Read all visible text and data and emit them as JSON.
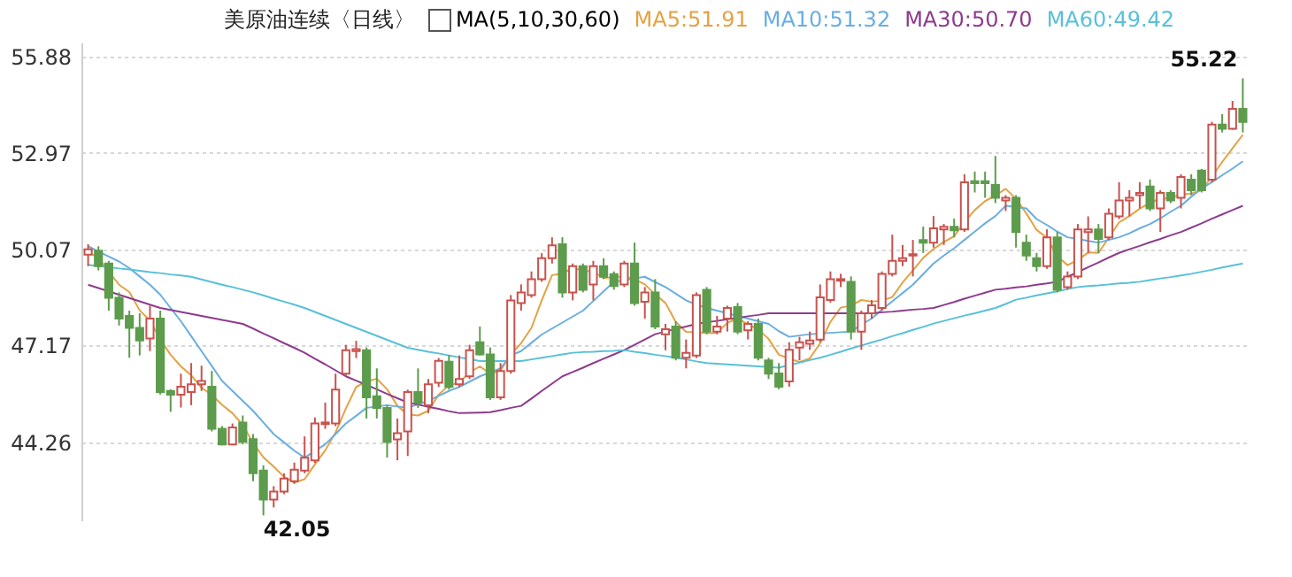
{
  "chart_data": {
    "type": "candlestick",
    "title": "美原油连续〈日线〉",
    "legend_title": "MA(5,10,30,60)",
    "legend": "top",
    "grid": "y",
    "tick_labels": "y",
    "ylim": [
      41.9,
      56.3
    ],
    "yticks": [
      44.26,
      47.17,
      50.07,
      52.97,
      55.88
    ],
    "colors": [
      "#c8524e",
      "#5c9c4c",
      "#5c9c4c",
      "#5c9c4c",
      "#5c9c4c",
      "#5c9c4c",
      "#c8524e",
      "#5c9c4c",
      "#5c9c4c",
      "#c8524e",
      "#c8524e",
      "#c8524e",
      "#5c9c4c",
      "#5c9c4c",
      "#c8524e",
      "#5c9c4c",
      "#5c9c4c",
      "#5c9c4c",
      "#c8524e",
      "#c8524e",
      "#c8524e",
      "#c8524e",
      "#c8524e",
      "#c8524e",
      "#c8524e",
      "#c8524e",
      "#c8524e",
      "#5c9c4c",
      "#5c9c4c",
      "#5c9c4c",
      "#c8524e",
      "#c8524e",
      "#5c9c4c",
      "#c8524e",
      "#c8524e",
      "#5c9c4c",
      "#c8524e",
      "#c8524e",
      "#5c9c4c",
      "#5c9c4c",
      "#c8524e",
      "#c8524e",
      "#c8524e",
      "#c8524e",
      "#c8524e",
      "#c8524e",
      "#5c9c4c",
      "#c8524e",
      "#5c9c4c",
      "#c8524e",
      "#5c9c4c",
      "#5c9c4c",
      "#c8524e",
      "#5c9c4c",
      "#c8524e",
      "#5c9c4c",
      "#c8524e",
      "#5c9c4c",
      "#c8524e",
      "#c8524e",
      "#5c9c4c",
      "#c8524e",
      "#c8524e",
      "#5c9c4c",
      "#c8524e",
      "#5c9c4c",
      "#5c9c4c",
      "#5c9c4c",
      "#c8524e",
      "#c8524e",
      "#c8524e",
      "#c8524e",
      "#c8524e",
      "#c8524e",
      "#5c9c4c",
      "#c8524e",
      "#c8524e",
      "#c8524e",
      "#c8524e",
      "#c8524e",
      "#c8524e",
      "#5c9c4c",
      "#c8524e",
      "#c8524e",
      "#5c9c4c",
      "#c8524e",
      "#5c9c4c",
      "#5c9c4c",
      "#5c9c4c",
      "#c8524e",
      "#5c9c4c",
      "#5c9c4c",
      "#5c9c4c",
      "#c8524e",
      "#5c9c4c",
      "#c8524e",
      "#c8524e",
      "#c8524e",
      "#5c9c4c",
      "#c8524e",
      "#c8524e",
      "#c8524e",
      "#c8524e",
      "#5c9c4c",
      "#c8524e",
      "#5c9c4c",
      "#c8524e",
      "#5c9c4c",
      "#5c9c4c",
      "#c8524e",
      "#5c9c4c",
      "#c8524e",
      "#5c9c4c"
    ],
    "categories": [
      null,
      null,
      null,
      null,
      null,
      null,
      null,
      null,
      null,
      null,
      null,
      null,
      null,
      null,
      null,
      null,
      null,
      null,
      null,
      null,
      null,
      null,
      null,
      null,
      null,
      null,
      null,
      null,
      null,
      null,
      null,
      null,
      null,
      null,
      null,
      null,
      null,
      null,
      null,
      null,
      null,
      null,
      null,
      null,
      null,
      null,
      null,
      null,
      null,
      null,
      null,
      null,
      null,
      null,
      null,
      null,
      null,
      null,
      null,
      null,
      null,
      null,
      null,
      null,
      null,
      null,
      null,
      null,
      null,
      null,
      null,
      null,
      null,
      null,
      null,
      null,
      null,
      null,
      null,
      null,
      null,
      null,
      null,
      null,
      null,
      null,
      null,
      null,
      null,
      null,
      null,
      null,
      null,
      null,
      null,
      null,
      null,
      null,
      null,
      null,
      null,
      null,
      null,
      null,
      null,
      null,
      null,
      null,
      null,
      null,
      null,
      null,
      null
    ],
    "ohlc": [
      [
        49.91,
        50.22,
        49.56,
        50.07
      ],
      [
        50.03,
        50.16,
        49.43,
        49.56
      ],
      [
        49.64,
        49.72,
        48.22,
        48.61
      ],
      [
        48.61,
        48.77,
        47.77,
        47.98
      ],
      [
        48.06,
        48.22,
        46.8,
        47.7
      ],
      [
        47.7,
        48.14,
        46.87,
        47.32
      ],
      [
        47.38,
        48.37,
        47.0,
        47.98
      ],
      [
        47.98,
        48.22,
        45.69,
        45.77
      ],
      [
        45.8,
        45.85,
        45.17,
        45.69
      ],
      [
        45.69,
        46.32,
        45.3,
        45.93
      ],
      [
        45.77,
        46.64,
        45.37,
        46.0
      ],
      [
        46.0,
        46.56,
        45.8,
        46.1
      ],
      [
        45.93,
        46.4,
        44.58,
        44.66
      ],
      [
        44.66,
        44.74,
        44.16,
        44.19
      ],
      [
        44.19,
        44.82,
        44.16,
        44.7
      ],
      [
        44.85,
        45.06,
        44.19,
        44.27
      ],
      [
        44.35,
        44.5,
        43.08,
        43.32
      ],
      [
        43.4,
        43.56,
        42.05,
        42.53
      ],
      [
        42.53,
        42.93,
        42.29,
        42.77
      ],
      [
        42.77,
        43.32,
        42.69,
        43.16
      ],
      [
        43.08,
        43.64,
        43.0,
        43.43
      ],
      [
        43.4,
        44.43,
        43.32,
        43.79
      ],
      [
        43.71,
        45.0,
        43.63,
        44.82
      ],
      [
        44.8,
        45.45,
        44.66,
        44.85
      ],
      [
        44.82,
        46.32,
        44.74,
        45.84
      ],
      [
        46.32,
        47.19,
        46.24,
        47.03
      ],
      [
        47.0,
        47.31,
        46.79,
        47.06
      ],
      [
        47.03,
        47.11,
        44.97,
        45.61
      ],
      [
        45.64,
        46.48,
        44.97,
        45.29
      ],
      [
        45.29,
        45.37,
        43.79,
        44.26
      ],
      [
        44.34,
        44.97,
        43.71,
        44.53
      ],
      [
        44.58,
        45.84,
        43.84,
        45.77
      ],
      [
        45.77,
        46.48,
        45.29,
        45.45
      ],
      [
        45.37,
        46.16,
        45.13,
        46.0
      ],
      [
        46.05,
        46.79,
        45.92,
        46.71
      ],
      [
        46.68,
        46.87,
        45.84,
        45.92
      ],
      [
        46.0,
        46.87,
        45.92,
        46.16
      ],
      [
        46.24,
        47.19,
        46.16,
        47.03
      ],
      [
        47.27,
        47.74,
        46.87,
        46.9
      ],
      [
        46.9,
        47.11,
        45.53,
        45.61
      ],
      [
        45.61,
        46.64,
        45.53,
        46.4
      ],
      [
        46.4,
        48.69,
        46.32,
        48.53
      ],
      [
        48.45,
        49.01,
        48.22,
        48.77
      ],
      [
        48.69,
        49.4,
        48.61,
        49.17
      ],
      [
        49.17,
        49.95,
        49.09,
        49.8
      ],
      [
        49.8,
        50.43,
        49.64,
        50.19
      ],
      [
        50.22,
        50.43,
        48.61,
        48.77
      ],
      [
        48.77,
        49.64,
        48.53,
        49.56
      ],
      [
        49.56,
        49.64,
        48.77,
        48.85
      ],
      [
        49.01,
        49.72,
        48.53,
        49.56
      ],
      [
        49.56,
        49.8,
        49.17,
        49.24
      ],
      [
        49.32,
        49.4,
        48.85,
        48.96
      ],
      [
        49.01,
        49.72,
        48.93,
        49.64
      ],
      [
        49.64,
        50.27,
        48.37,
        48.45
      ],
      [
        48.49,
        48.93,
        47.98,
        48.77
      ],
      [
        48.77,
        49.17,
        47.66,
        47.74
      ],
      [
        47.51,
        47.82,
        47.03,
        47.66
      ],
      [
        47.74,
        47.9,
        46.72,
        46.8
      ],
      [
        46.8,
        47.35,
        46.48,
        46.95
      ],
      [
        46.87,
        48.77,
        46.79,
        48.69
      ],
      [
        48.85,
        48.93,
        47.51,
        47.59
      ],
      [
        47.59,
        48.06,
        47.51,
        47.74
      ],
      [
        47.98,
        48.37,
        47.59,
        48.3
      ],
      [
        48.33,
        48.45,
        47.51,
        47.59
      ],
      [
        47.63,
        47.9,
        47.35,
        47.82
      ],
      [
        47.82,
        47.98,
        46.72,
        46.8
      ],
      [
        46.72,
        46.8,
        46.16,
        46.32
      ],
      [
        46.33,
        46.64,
        45.85,
        45.93
      ],
      [
        46.09,
        47.27,
        45.93,
        47.04
      ],
      [
        47.11,
        47.43,
        46.72,
        47.27
      ],
      [
        47.22,
        47.59,
        47.04,
        47.32
      ],
      [
        47.35,
        49.01,
        47.27,
        48.62
      ],
      [
        48.54,
        49.4,
        48.46,
        49.17
      ],
      [
        49.12,
        49.33,
        48.93,
        49.17
      ],
      [
        49.09,
        49.25,
        47.35,
        47.59
      ],
      [
        47.59,
        48.22,
        47.04,
        48.14
      ],
      [
        48.14,
        48.54,
        47.98,
        48.38
      ],
      [
        48.3,
        49.4,
        48.22,
        49.33
      ],
      [
        49.33,
        50.51,
        49.25,
        49.72
      ],
      [
        49.72,
        50.2,
        49.56,
        49.8
      ],
      [
        49.88,
        50.35,
        49.25,
        49.92
      ],
      [
        50.35,
        50.75,
        49.96,
        50.27
      ],
      [
        50.27,
        51.07,
        50.12,
        50.7
      ],
      [
        50.67,
        50.83,
        50.2,
        50.75
      ],
      [
        50.75,
        50.99,
        50.43,
        50.64
      ],
      [
        50.67,
        52.33,
        50.59,
        52.09
      ],
      [
        52.12,
        52.41,
        51.78,
        52.06
      ],
      [
        52.12,
        52.41,
        51.62,
        52.06
      ],
      [
        52.01,
        52.88,
        51.46,
        51.62
      ],
      [
        51.54,
        51.7,
        51.22,
        51.62
      ],
      [
        51.62,
        51.7,
        50.12,
        50.59
      ],
      [
        50.27,
        50.51,
        49.72,
        49.88
      ],
      [
        49.8,
        49.96,
        49.4,
        49.56
      ],
      [
        49.56,
        50.67,
        49.48,
        50.43
      ],
      [
        50.43,
        50.59,
        48.77,
        48.85
      ],
      [
        48.93,
        49.4,
        48.85,
        49.25
      ],
      [
        49.25,
        50.83,
        49.17,
        50.67
      ],
      [
        50.59,
        51.06,
        49.96,
        50.67
      ],
      [
        50.67,
        50.83,
        49.96,
        50.38
      ],
      [
        50.43,
        51.3,
        50.35,
        51.14
      ],
      [
        51.06,
        52.09,
        50.98,
        51.54
      ],
      [
        51.54,
        51.85,
        51.06,
        51.62
      ],
      [
        51.7,
        52.09,
        51.3,
        51.77
      ],
      [
        51.96,
        52.17,
        51.22,
        51.3
      ],
      [
        51.3,
        51.85,
        50.59,
        51.77
      ],
      [
        51.77,
        51.85,
        51.46,
        51.54
      ],
      [
        51.62,
        52.33,
        51.3,
        52.25
      ],
      [
        52.17,
        52.33,
        51.7,
        51.85
      ],
      [
        52.44,
        52.49,
        51.78,
        51.85
      ],
      [
        52.17,
        53.91,
        52.09,
        53.83
      ],
      [
        53.83,
        54.14,
        53.59,
        53.7
      ],
      [
        53.7,
        54.54,
        53.67,
        54.3
      ],
      [
        54.3,
        55.22,
        53.59,
        53.91
      ]
    ],
    "series": [
      {
        "name": "MA5:51.91",
        "type": "line",
        "color": "#e3a244",
        "values": [
          50.0,
          49.8,
          49.4,
          49.0,
          48.78,
          48.23,
          47.92,
          47.35,
          46.89,
          46.54,
          46.27,
          45.9,
          45.68,
          45.38,
          45.13,
          44.78,
          44.23,
          43.8,
          43.52,
          43.21,
          43.04,
          43.14,
          43.59,
          44.01,
          44.55,
          45.27,
          45.92,
          46.08,
          46.17,
          45.85,
          45.35,
          45.09,
          45.06,
          45.2,
          45.69,
          45.97,
          46.05,
          46.36,
          46.54,
          46.32,
          46.42,
          46.89,
          47.24,
          47.7,
          48.53,
          49.29,
          49.34,
          49.5,
          49.43,
          49.39,
          49.2,
          49.23,
          49.25,
          49.17,
          49.01,
          48.71,
          48.45,
          47.88,
          47.58,
          47.57,
          47.54,
          47.55,
          47.85,
          47.98,
          47.81,
          47.65,
          47.37,
          46.89,
          46.78,
          46.67,
          46.78,
          47.24,
          47.88,
          48.31,
          48.37,
          48.54,
          48.49,
          48.52,
          48.63,
          49.07,
          49.43,
          49.81,
          50.08,
          50.29,
          50.46,
          50.89,
          51.25,
          51.52,
          51.69,
          51.89,
          51.59,
          51.15,
          50.65,
          50.42,
          49.86,
          49.59,
          49.75,
          49.97,
          49.96,
          50.42,
          50.88,
          51.07,
          51.29,
          51.47,
          51.6,
          51.6,
          51.73,
          51.74,
          51.85,
          52.26,
          52.7,
          53.11,
          53.52
        ]
      },
      {
        "name": "MA10:51.32",
        "type": "line",
        "color": "#6aaedf",
        "values": [
          50.16,
          50.0,
          49.85,
          49.7,
          49.5,
          49.25,
          49.0,
          48.7,
          48.3,
          47.9,
          47.45,
          47.0,
          46.55,
          46.1,
          45.8,
          45.5,
          45.2,
          44.85,
          44.5,
          44.25,
          44.0,
          43.79,
          43.99,
          44.19,
          44.5,
          44.82,
          45.05,
          45.29,
          45.33,
          45.37,
          45.33,
          45.29,
          45.4,
          45.5,
          45.65,
          45.8,
          45.92,
          46.08,
          46.24,
          46.36,
          46.48,
          46.87,
          47.0,
          47.25,
          47.5,
          47.68,
          47.86,
          48.04,
          48.22,
          48.51,
          48.8,
          49.09,
          49.14,
          49.19,
          49.24,
          49.08,
          48.93,
          48.73,
          48.53,
          48.4,
          48.3,
          48.22,
          48.14,
          48.06,
          47.98,
          47.9,
          47.82,
          47.6,
          47.43,
          47.47,
          47.51,
          47.53,
          47.55,
          47.57,
          47.59,
          47.8,
          47.98,
          48.25,
          48.5,
          48.75,
          49.0,
          49.32,
          49.64,
          49.88,
          50.1,
          50.35,
          50.6,
          50.85,
          51.07,
          51.38,
          51.34,
          51.3,
          50.98,
          50.8,
          50.6,
          50.43,
          50.38,
          50.32,
          50.27,
          50.35,
          50.43,
          50.55,
          50.7,
          50.83,
          51.0,
          51.2,
          51.38,
          51.65,
          51.9,
          52.09,
          52.3,
          52.5,
          52.72
        ]
      },
      {
        "name": "MA30:50.70",
        "type": "line",
        "color": "#8e3b8c",
        "values": [
          49.0,
          48.9,
          48.8,
          48.7,
          48.6,
          48.5,
          48.4,
          48.3,
          48.24,
          48.18,
          48.12,
          48.06,
          48.0,
          47.94,
          47.88,
          47.82,
          47.68,
          47.53,
          47.39,
          47.24,
          47.1,
          46.95,
          46.77,
          46.6,
          46.42,
          46.24,
          46.11,
          45.98,
          45.85,
          45.71,
          45.58,
          45.45,
          45.39,
          45.32,
          45.26,
          45.19,
          45.13,
          45.14,
          45.15,
          45.16,
          45.22,
          45.29,
          45.35,
          45.57,
          45.8,
          46.02,
          46.24,
          46.37,
          46.5,
          46.64,
          46.77,
          46.9,
          47.03,
          47.19,
          47.35,
          47.51,
          47.59,
          47.67,
          47.74,
          47.82,
          47.87,
          47.91,
          47.96,
          48.0,
          48.05,
          48.09,
          48.14,
          48.14,
          48.14,
          48.14,
          48.14,
          48.14,
          48.14,
          48.14,
          48.14,
          48.14,
          48.14,
          48.17,
          48.19,
          48.22,
          48.25,
          48.27,
          48.3,
          48.39,
          48.48,
          48.58,
          48.67,
          48.76,
          48.85,
          48.88,
          48.92,
          48.95,
          49.0,
          49.04,
          49.09,
          49.24,
          49.38,
          49.53,
          49.67,
          49.82,
          49.96,
          50.07,
          50.17,
          50.28,
          50.38,
          50.49,
          50.59,
          50.72,
          50.85,
          50.99,
          51.12,
          51.25,
          51.38
        ]
      },
      {
        "name": "MA60:49.42",
        "type": "line",
        "color": "#58c0d8",
        "values": [
          49.6,
          49.56,
          49.53,
          49.49,
          49.46,
          49.42,
          49.38,
          49.35,
          49.31,
          49.28,
          49.24,
          49.16,
          49.08,
          49.0,
          48.93,
          48.85,
          48.77,
          48.68,
          48.58,
          48.49,
          48.4,
          48.3,
          48.18,
          48.06,
          47.94,
          47.82,
          47.7,
          47.58,
          47.46,
          47.34,
          47.22,
          47.1,
          47.04,
          46.98,
          46.93,
          46.87,
          46.81,
          46.76,
          46.7,
          46.7,
          46.7,
          46.7,
          46.7,
          46.75,
          46.8,
          46.85,
          46.9,
          46.95,
          46.97,
          46.98,
          47.0,
          47.01,
          47.03,
          46.98,
          46.94,
          46.89,
          46.85,
          46.8,
          46.75,
          46.69,
          46.64,
          46.62,
          46.6,
          46.58,
          46.56,
          46.54,
          46.52,
          46.5,
          46.58,
          46.65,
          46.73,
          46.8,
          46.89,
          46.98,
          47.08,
          47.17,
          47.26,
          47.35,
          47.45,
          47.54,
          47.64,
          47.73,
          47.83,
          47.91,
          47.99,
          48.07,
          48.14,
          48.22,
          48.3,
          48.42,
          48.55,
          48.61,
          48.68,
          48.74,
          48.8,
          48.87,
          48.93,
          48.96,
          48.98,
          49.01,
          49.04,
          49.06,
          49.09,
          49.14,
          49.19,
          49.23,
          49.28,
          49.33,
          49.39,
          49.45,
          49.52,
          49.58,
          49.64
        ]
      }
    ],
    "annotations": [
      "55.22",
      "42.05"
    ]
  }
}
